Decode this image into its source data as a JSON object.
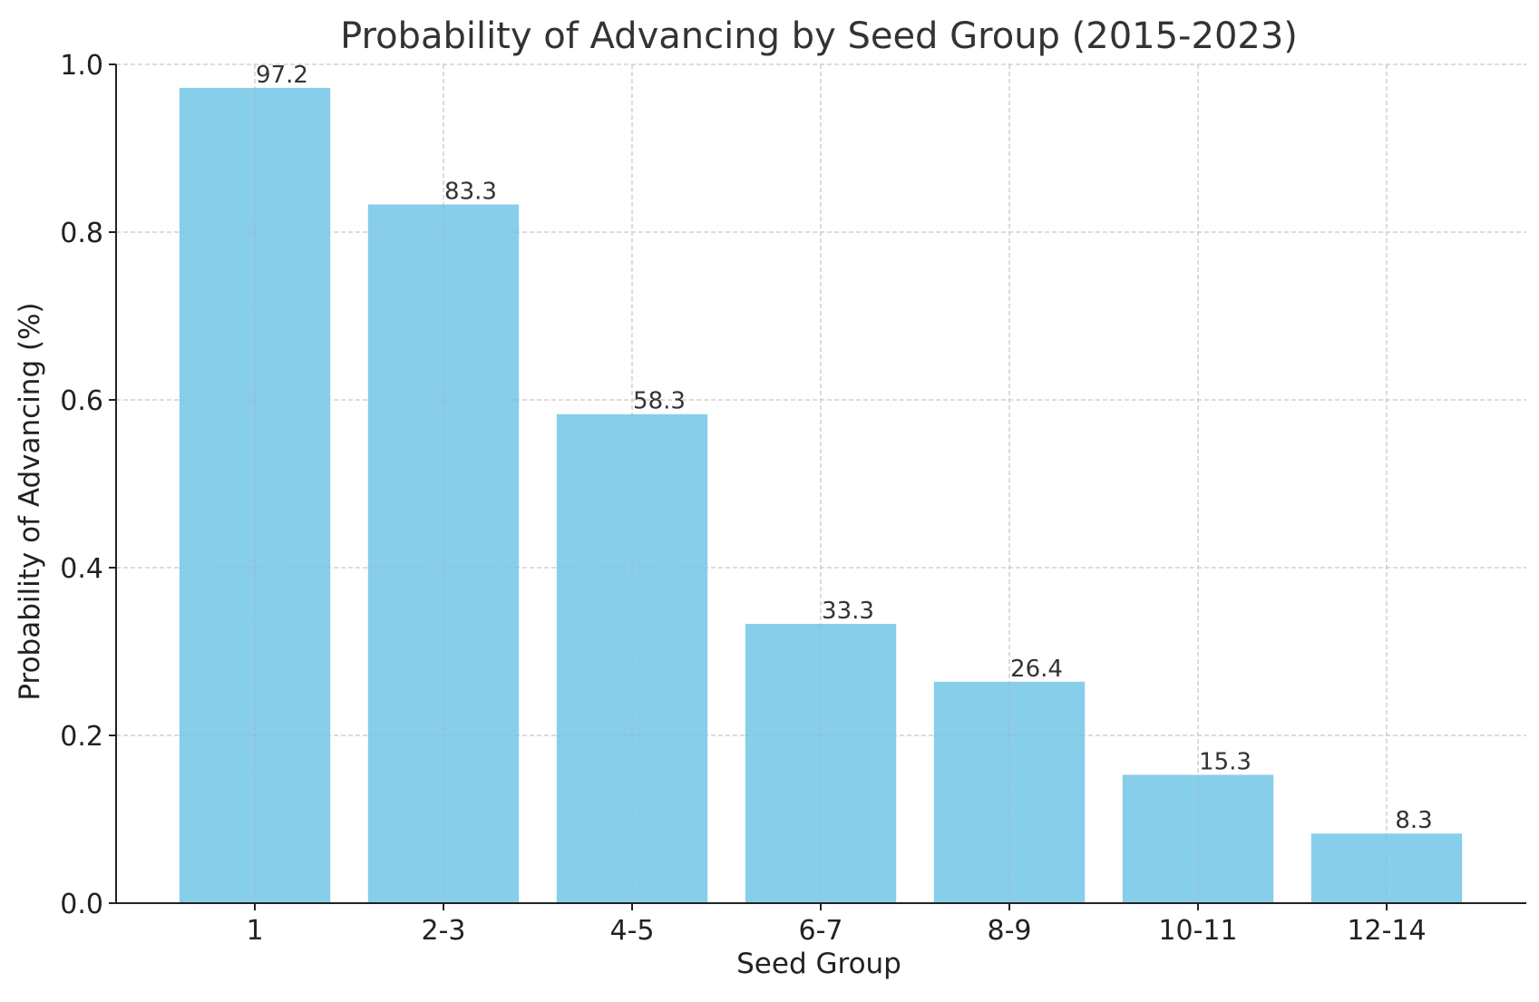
{
  "chart_data": {
    "type": "bar",
    "title": "Probability of Advancing by Seed Group (2015-2023)",
    "xlabel": "Seed Group",
    "ylabel": "Probability of Advancing (%)",
    "categories": [
      "1",
      "2-3",
      "4-5",
      "6-7",
      "8-9",
      "10-11",
      "12-14"
    ],
    "values": [
      0.972,
      0.833,
      0.583,
      0.333,
      0.264,
      0.153,
      0.083
    ],
    "data_labels": [
      "97.2",
      "83.3",
      "58.3",
      "33.3",
      "26.4",
      "15.3",
      "8.3"
    ],
    "ylim": [
      0,
      1.0
    ],
    "yticks": [
      0.0,
      0.2,
      0.4,
      0.6,
      0.8,
      1.0
    ],
    "ytick_labels": [
      "0.0",
      "0.2",
      "0.4",
      "0.6",
      "0.8",
      "1.0"
    ],
    "grid": true,
    "bar_color": "#87CEEB",
    "text_color": "#333333",
    "grid_color": "#c8c8c8"
  }
}
